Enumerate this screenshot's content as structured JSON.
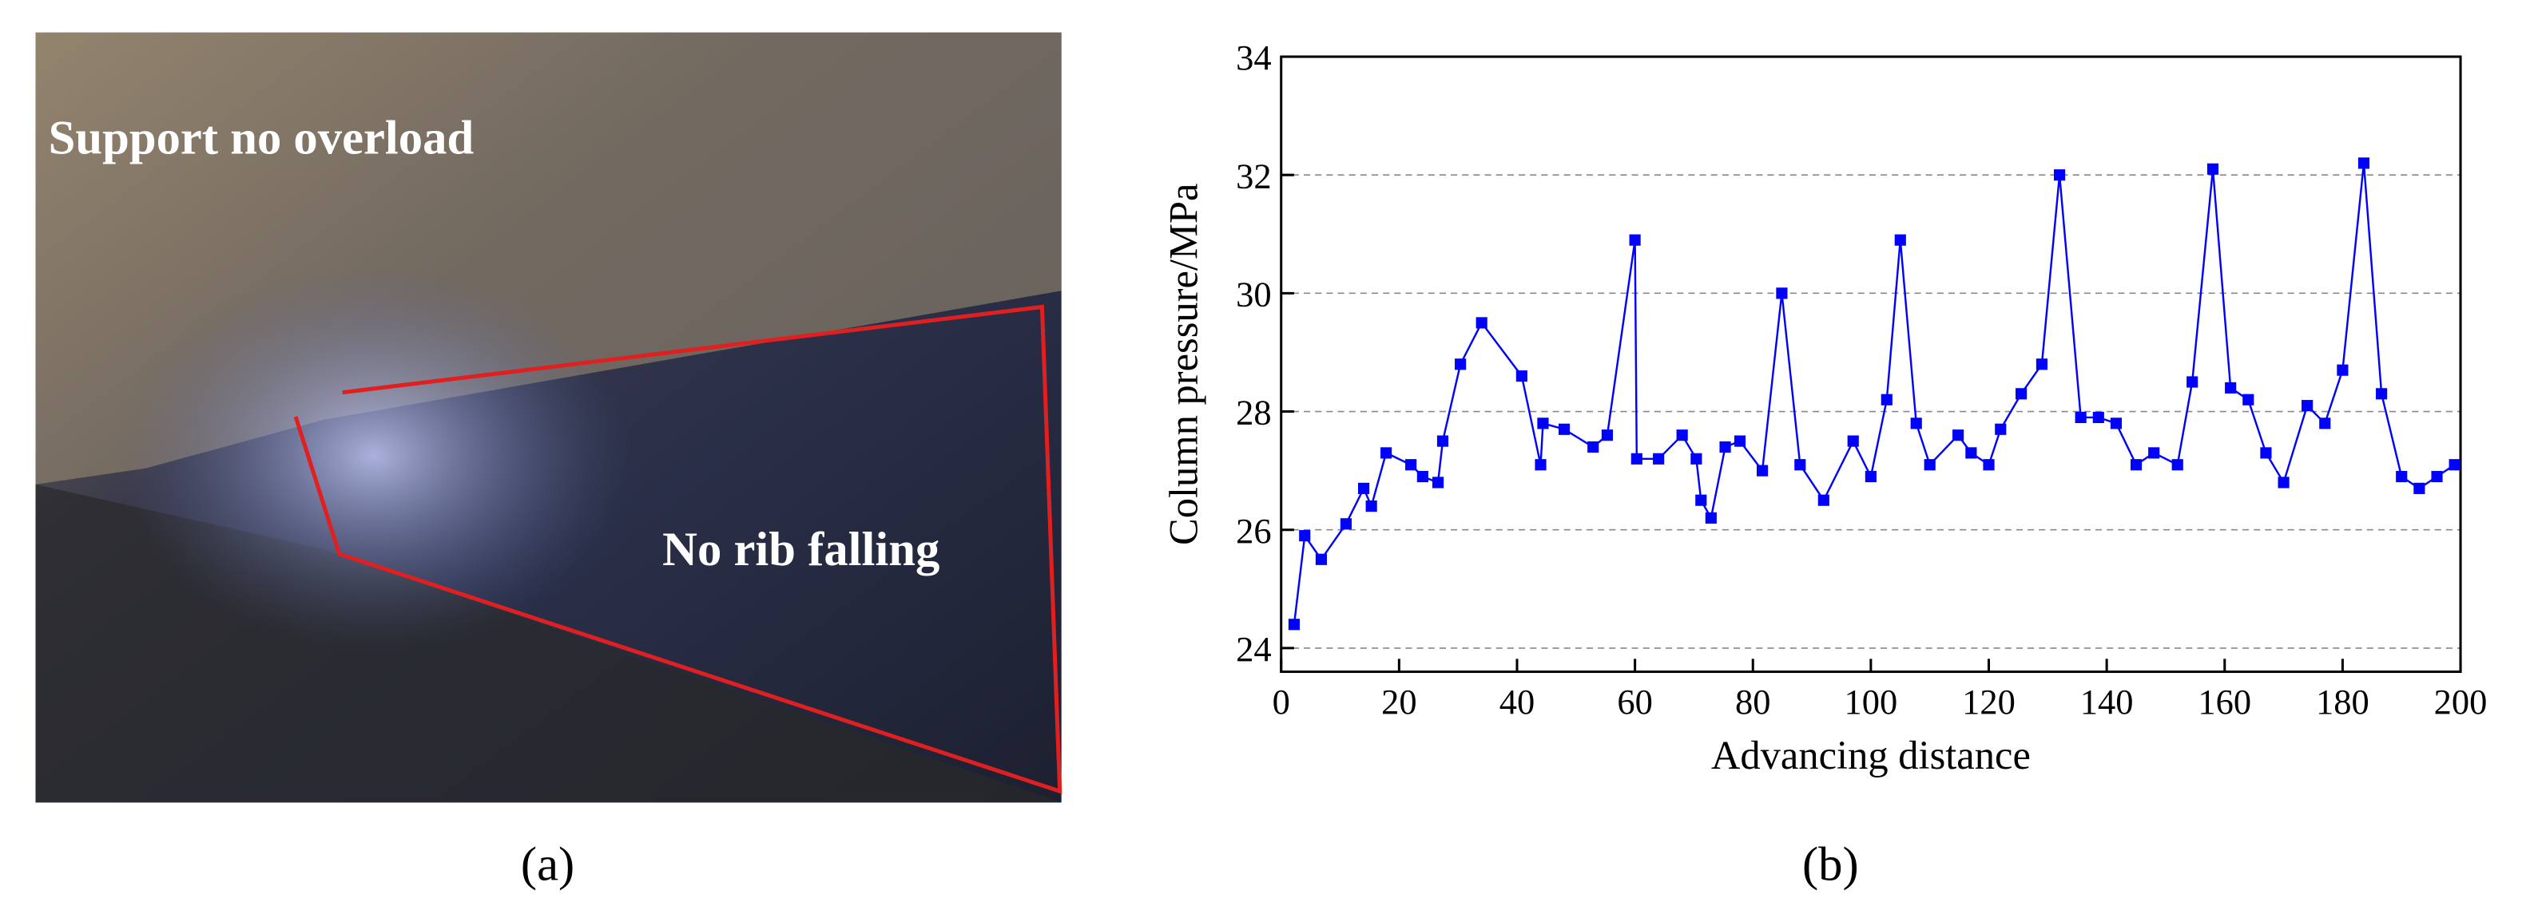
{
  "photo": {
    "texts": [
      "Support no overload",
      "No rib falling"
    ]
  },
  "panel_labels": [
    "(a)",
    "(b)"
  ],
  "chart_data": {
    "type": "line",
    "x_label": "Advancing distance",
    "y_label": "Column pressure/MPa",
    "xlim": [
      0,
      200
    ],
    "xticks": [
      0,
      20,
      40,
      60,
      80,
      100,
      120,
      140,
      160,
      180,
      200
    ],
    "ylim": [
      23.6,
      34
    ],
    "yticks": [
      24,
      26,
      28,
      30,
      32,
      34
    ],
    "grid": true,
    "series": [
      {
        "color": "#0000ff",
        "x": [
          2.2,
          4,
          6.8,
          11,
          14,
          15.3,
          17.8,
          22,
          24,
          26.6,
          27.4,
          30.4,
          34,
          40.8,
          44,
          44.4,
          48,
          52.9,
          55.3,
          60,
          60.3,
          64,
          68,
          70.4,
          71.2,
          72.9,
          75.3,
          77.8,
          81.6,
          84.9,
          88,
          92,
          97,
          100,
          102.7,
          105,
          107.7,
          110,
          114.8,
          117,
          120,
          122,
          125.5,
          129,
          132,
          135.6,
          138.6,
          141.6,
          145,
          148,
          152,
          154.5,
          158,
          161,
          164,
          167,
          170,
          174,
          177,
          180,
          183.6,
          186.6,
          190,
          193,
          196,
          199
        ],
        "values": [
          24.4,
          25.9,
          25.5,
          26.1,
          26.7,
          26.4,
          27.3,
          27.1,
          26.9,
          26.8,
          27.5,
          28.8,
          29.5,
          28.6,
          27.1,
          27.8,
          27.7,
          27.4,
          27.6,
          30.9,
          27.2,
          27.2,
          27.6,
          27.2,
          26.5,
          26.2,
          27.4,
          27.5,
          27.0,
          30.0,
          27.1,
          26.5,
          27.5,
          26.9,
          28.2,
          30.9,
          27.8,
          27.1,
          27.6,
          27.3,
          27.1,
          27.7,
          28.3,
          28.8,
          32.0,
          27.9,
          27.9,
          27.8,
          27.1,
          27.3,
          27.1,
          28.5,
          32.1,
          28.4,
          28.2,
          27.3,
          26.8,
          28.1,
          27.8,
          28.7,
          32.2,
          28.3,
          26.9,
          26.7,
          26.9,
          27.1
        ]
      }
    ]
  }
}
